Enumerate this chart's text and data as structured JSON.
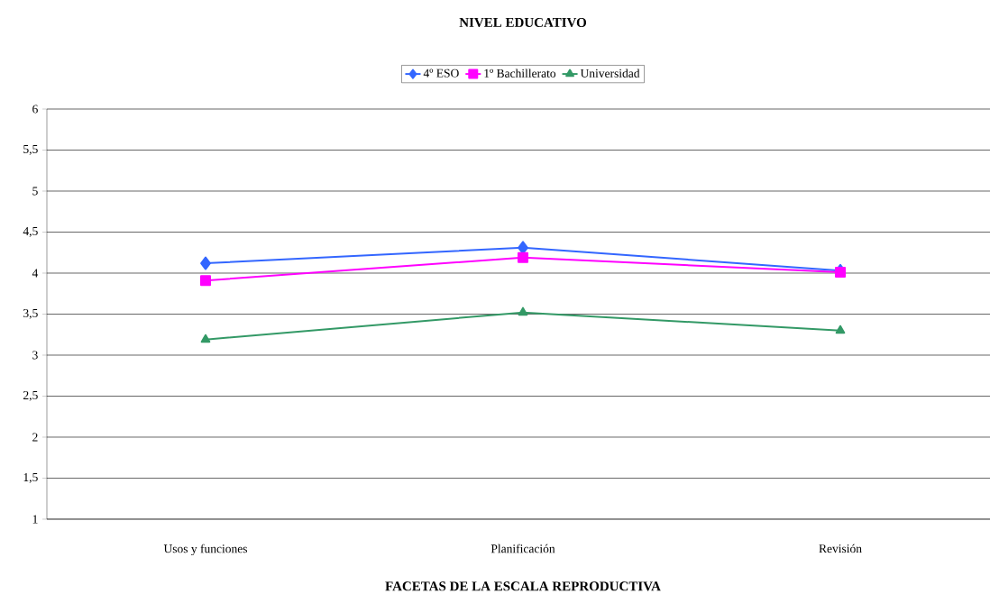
{
  "chart_data": {
    "type": "line",
    "title": "NIVEL EDUCATIVO",
    "xlabel": "FACETAS DE LA ESCALA REPRODUCTIVA",
    "categories": [
      "Usos y funciones",
      "Planificación",
      "Revisión"
    ],
    "series": [
      {
        "name": "4º ESO",
        "color": "#3366ff",
        "marker": "diamond",
        "values": [
          4.12,
          4.31,
          4.03
        ]
      },
      {
        "name": "1º Bachillerato",
        "color": "#ff00ff",
        "marker": "square",
        "values": [
          3.91,
          4.19,
          4.01
        ]
      },
      {
        "name": "Universidad",
        "color": "#339966",
        "marker": "triangle",
        "values": [
          3.19,
          3.52,
          3.3
        ]
      }
    ],
    "ylim": [
      1,
      6
    ],
    "yticks": [
      1,
      {
        "value": 1.5,
        "label": "1,5"
      },
      2,
      {
        "value": 2.5,
        "label": "2,5"
      },
      3,
      {
        "value": 3.5,
        "label": "3,5"
      },
      4,
      {
        "value": 4.5,
        "label": "4,5"
      },
      5,
      {
        "value": 5.5,
        "label": "5,5"
      },
      6
    ],
    "grid": "y",
    "legend": "top",
    "line_style": "solid"
  }
}
